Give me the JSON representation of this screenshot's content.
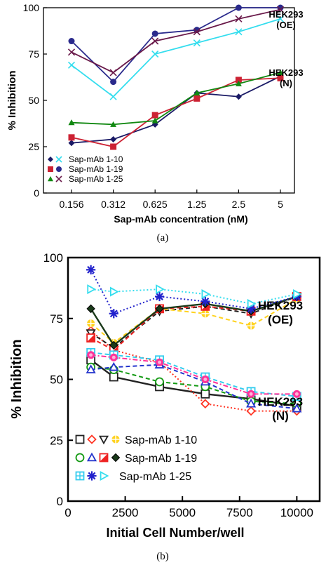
{
  "chart_data": [
    {
      "type": "line",
      "panel": "a",
      "caption": "(a)",
      "xlabel": "Sap-mAb concentration (nM)",
      "ylabel": "% Inhibition",
      "categories": [
        "0.156",
        "0.312",
        "0.625",
        "1.25",
        "2.5",
        "5"
      ],
      "ylim": [
        0,
        100
      ],
      "yticks": [
        "0",
        "25",
        "50",
        "75",
        "100"
      ],
      "grid": false,
      "annotations": [
        {
          "lines": [
            "HEK293",
            "(OE)"
          ],
          "near_value": 100
        },
        {
          "lines": [
            "HEK293",
            "(N)"
          ],
          "near_value": 63
        }
      ],
      "legend": {
        "placement": "bottom-left",
        "entries": [
          {
            "label": "Sap-mAb 1-10",
            "markers": [
              "diamond",
              "cross"
            ],
            "colors": [
              "#1a1a66",
              "#33ddee"
            ]
          },
          {
            "label": "Sap-mAb 1-19",
            "markers": [
              "square",
              "circle"
            ],
            "colors": [
              "#cc2233",
              "#2a2a8c"
            ]
          },
          {
            "label": "Sap-mAb 1-25",
            "markers": [
              "triangle",
              "cross"
            ],
            "colors": [
              "#118811",
              "#6a1a4a"
            ]
          }
        ]
      },
      "series": [
        {
          "color": "#1a1a66",
          "marker": "diamond",
          "values": [
            27,
            29,
            37,
            54,
            52,
            63
          ]
        },
        {
          "color": "#33ddee",
          "marker": "cross",
          "values": [
            69,
            52,
            75,
            81,
            87,
            94
          ]
        },
        {
          "color": "#cc2233",
          "marker": "square",
          "values": [
            30,
            25,
            42,
            51,
            61,
            62
          ]
        },
        {
          "color": "#2a2a8c",
          "marker": "circle",
          "values": [
            82,
            60,
            86,
            88,
            100,
            100
          ]
        },
        {
          "color": "#118811",
          "marker": "triangle",
          "values": [
            38,
            37,
            39,
            54,
            59,
            65
          ]
        },
        {
          "color": "#6a1a4a",
          "marker": "cross",
          "values": [
            76,
            65,
            82,
            87,
            94,
            99
          ]
        }
      ]
    },
    {
      "type": "line",
      "panel": "b",
      "caption": "(b)",
      "xlabel": "Initial Cell Number/well",
      "ylabel": "% Inhibition",
      "xlim": [
        0,
        11000
      ],
      "xticks": [
        "0",
        "2500",
        "5000",
        "7500",
        "10000"
      ],
      "ylim": [
        0,
        100
      ],
      "yticks": [
        "0",
        "25",
        "50",
        "75",
        "100"
      ],
      "grid": false,
      "annotations": [
        {
          "lines": [
            "HEK293",
            "(OE)"
          ],
          "near_value": 84
        },
        {
          "lines": [
            "HEK293",
            "(N)"
          ],
          "near_value": 40
        }
      ],
      "legend": {
        "placement": "bottom-left",
        "entries": [
          {
            "label": "Sap-mAb 1-10"
          },
          {
            "label": "Sap-mAb 1-19"
          },
          {
            "label": "Sap-mAb 1-25"
          }
        ]
      },
      "series": [
        {
          "color": "#222222",
          "marker": "open-square",
          "dash": "solid",
          "x": [
            1000,
            2000,
            4000,
            6000,
            8000,
            10000
          ],
          "y": [
            58,
            51,
            47,
            44,
            42,
            39
          ]
        },
        {
          "color": "#ff3322",
          "marker": "open-diamond",
          "dash": "dotted",
          "x": [
            1000,
            2000,
            4000,
            6000,
            8000,
            10000
          ],
          "y": [
            70,
            62,
            57,
            40,
            37,
            37
          ]
        },
        {
          "color": "#222222",
          "marker": "open-triangle-down",
          "dash": "dashed",
          "x": [
            1000,
            2000,
            4000,
            6000,
            8000,
            10000
          ],
          "y": [
            69,
            63,
            78,
            80,
            77,
            84
          ]
        },
        {
          "color": "#ffd21f",
          "marker": "crosshair-circle",
          "dash": "dashed",
          "x": [
            1000,
            2000,
            4000,
            6000,
            8000,
            10000
          ],
          "y": [
            73,
            65,
            79,
            77,
            72,
            83
          ]
        },
        {
          "color": "#119911",
          "marker": "open-circle",
          "dash": "dashed",
          "x": [
            1000,
            2000,
            4000,
            6000,
            8000,
            10000
          ],
          "y": [
            55,
            54,
            49,
            47,
            41,
            40
          ]
        },
        {
          "color": "#2233cc",
          "marker": "open-triangle",
          "dash": "dashed",
          "x": [
            1000,
            2000,
            4000,
            6000,
            8000,
            10000
          ],
          "y": [
            54,
            55,
            56,
            49,
            40,
            38
          ]
        },
        {
          "color": "#ee2222",
          "marker": "half-square",
          "dash": "dashed",
          "x": [
            1000,
            2000,
            4000,
            6000,
            8000,
            10000
          ],
          "y": [
            67,
            62,
            79,
            80,
            78,
            84
          ]
        },
        {
          "color": "#1a3a1a",
          "marker": "filled-diamond",
          "dash": "solid",
          "x": [
            1000,
            2000,
            4000,
            6000,
            8000,
            10000
          ],
          "y": [
            79,
            64,
            79,
            81,
            78,
            84
          ]
        },
        {
          "color": "#33ccee",
          "marker": "crosshair-square",
          "dash": "dashed",
          "x": [
            1000,
            2000,
            4000,
            6000,
            8000,
            10000
          ],
          "y": [
            61,
            60,
            58,
            51,
            45,
            43
          ]
        },
        {
          "color": "#ff3399",
          "marker": "dotted-circle",
          "dash": "dashdot",
          "x": [
            1000,
            2000,
            4000,
            6000,
            8000,
            10000
          ],
          "y": [
            60,
            59,
            57,
            50,
            44,
            44
          ]
        },
        {
          "color": "#2222cc",
          "marker": "asterisk",
          "dash": "dotted",
          "x": [
            1000,
            2000,
            4000,
            6000,
            8000,
            10000
          ],
          "y": [
            95,
            77,
            84,
            82,
            79,
            84
          ]
        },
        {
          "color": "#33ddee",
          "marker": "open-triangle-right",
          "dash": "dotted",
          "x": [
            1000,
            2000,
            4000,
            6000,
            8000,
            10000
          ],
          "y": [
            87,
            86,
            87,
            85,
            81,
            85
          ]
        }
      ]
    }
  ]
}
